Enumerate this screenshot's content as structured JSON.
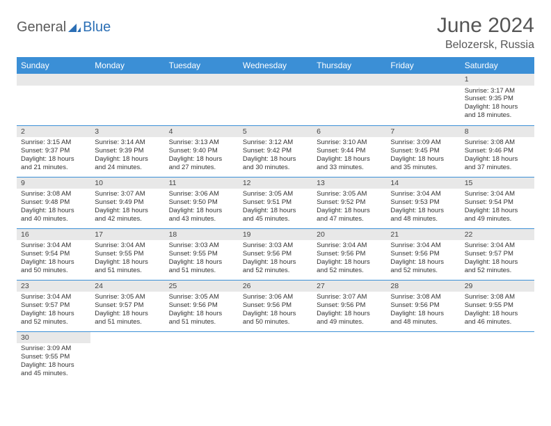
{
  "logo": {
    "part1": "General",
    "part2": "Blue"
  },
  "title": "June 2024",
  "location": "Belozersk, Russia",
  "colors": {
    "header_bg": "#3b8fd6",
    "header_text": "#ffffff",
    "daynum_bg": "#e8e8e8",
    "border": "#3b8fd6",
    "logo_gray": "#5a5a5a",
    "logo_blue": "#2b6fb5"
  },
  "weekdays": [
    "Sunday",
    "Monday",
    "Tuesday",
    "Wednesday",
    "Thursday",
    "Friday",
    "Saturday"
  ],
  "weeks": [
    [
      null,
      null,
      null,
      null,
      null,
      null,
      {
        "n": "1",
        "sr": "Sunrise: 3:17 AM",
        "ss": "Sunset: 9:35 PM",
        "d1": "Daylight: 18 hours",
        "d2": "and 18 minutes."
      }
    ],
    [
      {
        "n": "2",
        "sr": "Sunrise: 3:15 AM",
        "ss": "Sunset: 9:37 PM",
        "d1": "Daylight: 18 hours",
        "d2": "and 21 minutes."
      },
      {
        "n": "3",
        "sr": "Sunrise: 3:14 AM",
        "ss": "Sunset: 9:39 PM",
        "d1": "Daylight: 18 hours",
        "d2": "and 24 minutes."
      },
      {
        "n": "4",
        "sr": "Sunrise: 3:13 AM",
        "ss": "Sunset: 9:40 PM",
        "d1": "Daylight: 18 hours",
        "d2": "and 27 minutes."
      },
      {
        "n": "5",
        "sr": "Sunrise: 3:12 AM",
        "ss": "Sunset: 9:42 PM",
        "d1": "Daylight: 18 hours",
        "d2": "and 30 minutes."
      },
      {
        "n": "6",
        "sr": "Sunrise: 3:10 AM",
        "ss": "Sunset: 9:44 PM",
        "d1": "Daylight: 18 hours",
        "d2": "and 33 minutes."
      },
      {
        "n": "7",
        "sr": "Sunrise: 3:09 AM",
        "ss": "Sunset: 9:45 PM",
        "d1": "Daylight: 18 hours",
        "d2": "and 35 minutes."
      },
      {
        "n": "8",
        "sr": "Sunrise: 3:08 AM",
        "ss": "Sunset: 9:46 PM",
        "d1": "Daylight: 18 hours",
        "d2": "and 37 minutes."
      }
    ],
    [
      {
        "n": "9",
        "sr": "Sunrise: 3:08 AM",
        "ss": "Sunset: 9:48 PM",
        "d1": "Daylight: 18 hours",
        "d2": "and 40 minutes."
      },
      {
        "n": "10",
        "sr": "Sunrise: 3:07 AM",
        "ss": "Sunset: 9:49 PM",
        "d1": "Daylight: 18 hours",
        "d2": "and 42 minutes."
      },
      {
        "n": "11",
        "sr": "Sunrise: 3:06 AM",
        "ss": "Sunset: 9:50 PM",
        "d1": "Daylight: 18 hours",
        "d2": "and 43 minutes."
      },
      {
        "n": "12",
        "sr": "Sunrise: 3:05 AM",
        "ss": "Sunset: 9:51 PM",
        "d1": "Daylight: 18 hours",
        "d2": "and 45 minutes."
      },
      {
        "n": "13",
        "sr": "Sunrise: 3:05 AM",
        "ss": "Sunset: 9:52 PM",
        "d1": "Daylight: 18 hours",
        "d2": "and 47 minutes."
      },
      {
        "n": "14",
        "sr": "Sunrise: 3:04 AM",
        "ss": "Sunset: 9:53 PM",
        "d1": "Daylight: 18 hours",
        "d2": "and 48 minutes."
      },
      {
        "n": "15",
        "sr": "Sunrise: 3:04 AM",
        "ss": "Sunset: 9:54 PM",
        "d1": "Daylight: 18 hours",
        "d2": "and 49 minutes."
      }
    ],
    [
      {
        "n": "16",
        "sr": "Sunrise: 3:04 AM",
        "ss": "Sunset: 9:54 PM",
        "d1": "Daylight: 18 hours",
        "d2": "and 50 minutes."
      },
      {
        "n": "17",
        "sr": "Sunrise: 3:04 AM",
        "ss": "Sunset: 9:55 PM",
        "d1": "Daylight: 18 hours",
        "d2": "and 51 minutes."
      },
      {
        "n": "18",
        "sr": "Sunrise: 3:03 AM",
        "ss": "Sunset: 9:55 PM",
        "d1": "Daylight: 18 hours",
        "d2": "and 51 minutes."
      },
      {
        "n": "19",
        "sr": "Sunrise: 3:03 AM",
        "ss": "Sunset: 9:56 PM",
        "d1": "Daylight: 18 hours",
        "d2": "and 52 minutes."
      },
      {
        "n": "20",
        "sr": "Sunrise: 3:04 AM",
        "ss": "Sunset: 9:56 PM",
        "d1": "Daylight: 18 hours",
        "d2": "and 52 minutes."
      },
      {
        "n": "21",
        "sr": "Sunrise: 3:04 AM",
        "ss": "Sunset: 9:56 PM",
        "d1": "Daylight: 18 hours",
        "d2": "and 52 minutes."
      },
      {
        "n": "22",
        "sr": "Sunrise: 3:04 AM",
        "ss": "Sunset: 9:57 PM",
        "d1": "Daylight: 18 hours",
        "d2": "and 52 minutes."
      }
    ],
    [
      {
        "n": "23",
        "sr": "Sunrise: 3:04 AM",
        "ss": "Sunset: 9:57 PM",
        "d1": "Daylight: 18 hours",
        "d2": "and 52 minutes."
      },
      {
        "n": "24",
        "sr": "Sunrise: 3:05 AM",
        "ss": "Sunset: 9:57 PM",
        "d1": "Daylight: 18 hours",
        "d2": "and 51 minutes."
      },
      {
        "n": "25",
        "sr": "Sunrise: 3:05 AM",
        "ss": "Sunset: 9:56 PM",
        "d1": "Daylight: 18 hours",
        "d2": "and 51 minutes."
      },
      {
        "n": "26",
        "sr": "Sunrise: 3:06 AM",
        "ss": "Sunset: 9:56 PM",
        "d1": "Daylight: 18 hours",
        "d2": "and 50 minutes."
      },
      {
        "n": "27",
        "sr": "Sunrise: 3:07 AM",
        "ss": "Sunset: 9:56 PM",
        "d1": "Daylight: 18 hours",
        "d2": "and 49 minutes."
      },
      {
        "n": "28",
        "sr": "Sunrise: 3:08 AM",
        "ss": "Sunset: 9:56 PM",
        "d1": "Daylight: 18 hours",
        "d2": "and 48 minutes."
      },
      {
        "n": "29",
        "sr": "Sunrise: 3:08 AM",
        "ss": "Sunset: 9:55 PM",
        "d1": "Daylight: 18 hours",
        "d2": "and 46 minutes."
      }
    ],
    [
      {
        "n": "30",
        "sr": "Sunrise: 3:09 AM",
        "ss": "Sunset: 9:55 PM",
        "d1": "Daylight: 18 hours",
        "d2": "and 45 minutes."
      },
      null,
      null,
      null,
      null,
      null,
      null
    ]
  ]
}
